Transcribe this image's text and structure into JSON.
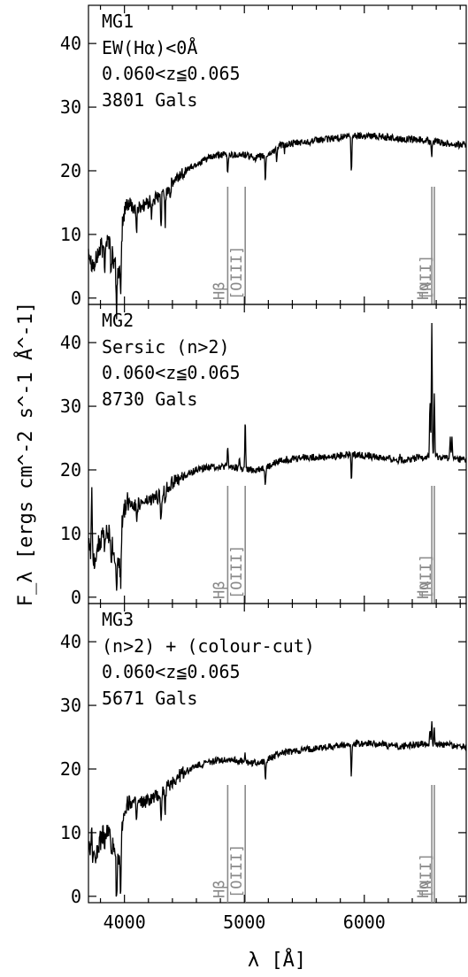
{
  "chart_data": {
    "type": "line",
    "xlabel": "λ [Å]",
    "ylabel": "F_λ [ergs cm^-2 s^-1 Å^-1]",
    "xlim": [
      3700,
      6850
    ],
    "ylim": [
      -1,
      46
    ],
    "xticks": [
      4000,
      5000,
      6000
    ],
    "xtick_labels": [
      "4000",
      "5000",
      "6000"
    ],
    "yticks": [
      0,
      10,
      20,
      30,
      40
    ],
    "ytick_labels": [
      "0",
      "10",
      "20",
      "30",
      "40"
    ],
    "line_markers": [
      {
        "name": "Hβ",
        "x": 4861
      },
      {
        "name": "[OIII]",
        "x": 5007
      },
      {
        "name": "Hα",
        "x": 6563
      },
      {
        "name": "[NII]",
        "x": 6584
      }
    ],
    "panels": [
      {
        "id": "MG1",
        "labels": [
          "MG1",
          "EW(Hα)<0Å",
          "0.060<z≦0.065",
          "3801 Gals"
        ],
        "continuum": [
          [
            3700,
            8
          ],
          [
            3720,
            6
          ],
          [
            3750,
            5
          ],
          [
            3780,
            7
          ],
          [
            3830,
            9
          ],
          [
            3880,
            9
          ],
          [
            3920,
            5
          ],
          [
            3960,
            4
          ],
          [
            3985,
            12
          ],
          [
            4020,
            15
          ],
          [
            4100,
            14
          ],
          [
            4200,
            15
          ],
          [
            4300,
            16
          ],
          [
            4400,
            18
          ],
          [
            4500,
            20
          ],
          [
            4600,
            21
          ],
          [
            4700,
            22
          ],
          [
            4800,
            22.5
          ],
          [
            4900,
            22.5
          ],
          [
            5000,
            22.5
          ],
          [
            5100,
            22
          ],
          [
            5200,
            22.5
          ],
          [
            5300,
            24
          ],
          [
            5500,
            24.5
          ],
          [
            5700,
            25
          ],
          [
            5900,
            25.5
          ],
          [
            6100,
            25.5
          ],
          [
            6300,
            25
          ],
          [
            6500,
            24.8
          ],
          [
            6600,
            24.5
          ],
          [
            6850,
            24
          ]
        ],
        "absorption": [
          [
            3820,
            -2
          ],
          [
            3835,
            -4
          ],
          [
            3889,
            -5
          ],
          [
            3934,
            -7
          ],
          [
            3969,
            -8
          ],
          [
            4101,
            -4
          ],
          [
            4227,
            -3
          ],
          [
            4305,
            -5
          ],
          [
            4340,
            -5
          ],
          [
            4383,
            -2
          ],
          [
            4861,
            -3
          ],
          [
            5175,
            -4
          ],
          [
            5270,
            -2
          ],
          [
            5335,
            -1
          ],
          [
            5892,
            -6
          ],
          [
            6563,
            -2
          ]
        ],
        "emission": []
      },
      {
        "id": "MG2",
        "labels": [
          "MG2",
          "Sersic (n>2)",
          "0.060<z≦0.065",
          "8730 Gals"
        ],
        "continuum": [
          [
            3700,
            9
          ],
          [
            3720,
            7
          ],
          [
            3750,
            6
          ],
          [
            3780,
            8
          ],
          [
            3830,
            10
          ],
          [
            3880,
            10
          ],
          [
            3920,
            6
          ],
          [
            3960,
            5
          ],
          [
            3985,
            13
          ],
          [
            4020,
            15
          ],
          [
            4100,
            14.5
          ],
          [
            4200,
            15
          ],
          [
            4300,
            16
          ],
          [
            4400,
            18
          ],
          [
            4500,
            19
          ],
          [
            4600,
            20
          ],
          [
            4700,
            20.5
          ],
          [
            4800,
            20.5
          ],
          [
            4900,
            20.5
          ],
          [
            5000,
            20
          ],
          [
            5100,
            20
          ],
          [
            5200,
            20.5
          ],
          [
            5300,
            21.5
          ],
          [
            5500,
            22
          ],
          [
            5700,
            22
          ],
          [
            5900,
            22.5
          ],
          [
            6100,
            22
          ],
          [
            6300,
            21.5
          ],
          [
            6500,
            22
          ],
          [
            6600,
            22
          ],
          [
            6850,
            21.5
          ]
        ],
        "absorption": [
          [
            3835,
            -3
          ],
          [
            3889,
            -3
          ],
          [
            3934,
            -6
          ],
          [
            3969,
            -6
          ],
          [
            4101,
            -2
          ],
          [
            4305,
            -4
          ],
          [
            4340,
            -2
          ],
          [
            5175,
            -3
          ],
          [
            5892,
            -4
          ]
        ],
        "emission": [
          [
            3727,
            10
          ],
          [
            4861,
            3
          ],
          [
            4959,
            2
          ],
          [
            5007,
            7.5
          ],
          [
            6300,
            1
          ],
          [
            6548,
            9
          ],
          [
            6563,
            21
          ],
          [
            6584,
            10
          ],
          [
            6717,
            4
          ],
          [
            6731,
            3
          ]
        ]
      },
      {
        "id": "MG3",
        "labels": [
          "MG3",
          "(n>2) + (colour-cut)",
          "0.060<z≦0.065",
          "5671 Gals"
        ],
        "continuum": [
          [
            3700,
            8
          ],
          [
            3720,
            7
          ],
          [
            3750,
            6
          ],
          [
            3780,
            8
          ],
          [
            3830,
            10
          ],
          [
            3880,
            10
          ],
          [
            3920,
            6
          ],
          [
            3960,
            5
          ],
          [
            3985,
            12
          ],
          [
            4020,
            15
          ],
          [
            4100,
            14.5
          ],
          [
            4200,
            15
          ],
          [
            4300,
            16
          ],
          [
            4400,
            18
          ],
          [
            4500,
            19.5
          ],
          [
            4600,
            20.5
          ],
          [
            4700,
            21
          ],
          [
            4800,
            21.5
          ],
          [
            4900,
            21.5
          ],
          [
            5000,
            21
          ],
          [
            5100,
            21
          ],
          [
            5200,
            21.5
          ],
          [
            5300,
            22.5
          ],
          [
            5500,
            23
          ],
          [
            5700,
            23.5
          ],
          [
            5900,
            24
          ],
          [
            6100,
            24
          ],
          [
            6300,
            23.5
          ],
          [
            6500,
            24
          ],
          [
            6600,
            24
          ],
          [
            6850,
            23.5
          ]
        ],
        "absorption": [
          [
            3835,
            -3
          ],
          [
            3889,
            -3
          ],
          [
            3934,
            -6
          ],
          [
            3969,
            -7
          ],
          [
            4101,
            -3
          ],
          [
            4305,
            -5
          ],
          [
            4340,
            -3
          ],
          [
            5175,
            -3
          ],
          [
            5892,
            -5
          ]
        ],
        "emission": [
          [
            3727,
            4
          ],
          [
            5007,
            1.5
          ],
          [
            6548,
            2
          ],
          [
            6563,
            4
          ],
          [
            6584,
            2
          ]
        ]
      }
    ]
  }
}
